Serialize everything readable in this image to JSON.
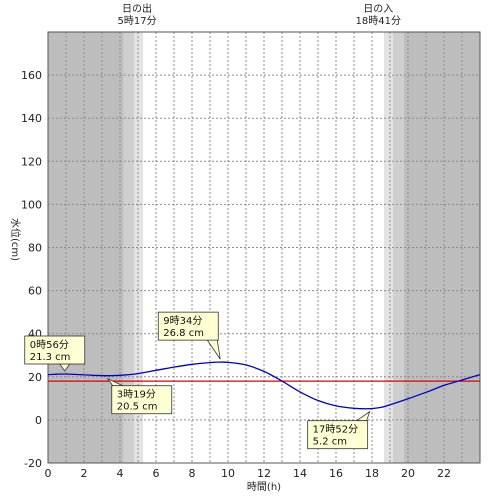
{
  "chart_data": {
    "type": "line",
    "title": "",
    "xlabel": "時間(h)",
    "ylabel": "水位(cm)",
    "xlim": [
      0,
      24
    ],
    "ylim": [
      -20,
      180
    ],
    "x_ticks": [
      0,
      2,
      4,
      6,
      8,
      10,
      12,
      14,
      16,
      18,
      20,
      22
    ],
    "y_ticks": [
      -20,
      0,
      20,
      40,
      60,
      80,
      100,
      120,
      140,
      160
    ],
    "grid": true,
    "sunrise": {
      "label_line1": "日の出",
      "label_line2": "5時17分",
      "hour": 5.28
    },
    "sunset": {
      "label_line1": "日の入",
      "label_line2": "18時41分",
      "hour": 18.68
    },
    "reference_line": {
      "value": 18,
      "color": "#dd0000"
    },
    "line_color": "#0000cc",
    "series": [
      {
        "x": [
          0,
          0.5,
          0.93,
          1.5,
          2,
          2.5,
          3.32,
          4,
          4.5,
          5,
          6,
          7,
          8,
          9,
          9.57,
          10,
          11,
          12,
          13,
          14,
          15,
          16,
          17,
          17.87,
          18.5,
          19,
          20,
          21,
          22,
          23,
          24
        ],
        "y": [
          21.0,
          21.2,
          21.3,
          21.1,
          20.9,
          20.7,
          20.5,
          20.7,
          21.0,
          21.5,
          23.0,
          24.5,
          25.8,
          26.6,
          26.8,
          26.7,
          25.5,
          22.5,
          18.0,
          13.0,
          9.0,
          6.5,
          5.4,
          5.2,
          5.8,
          7.0,
          9.8,
          12.8,
          16.0,
          18.5,
          21.0
        ]
      }
    ],
    "annotations": [
      {
        "line1": "0時56分",
        "line2": "21.3 cm",
        "x": 0.93,
        "y": 21.3
      },
      {
        "line1": "3時19分",
        "line2": "20.5 cm",
        "x": 3.32,
        "y": 20.5
      },
      {
        "line1": "9時34分",
        "line2": "26.8 cm",
        "x": 9.57,
        "y": 26.8
      },
      {
        "line1": "17時52分",
        "line2": "5.2 cm",
        "x": 17.87,
        "y": 5.2
      }
    ]
  }
}
